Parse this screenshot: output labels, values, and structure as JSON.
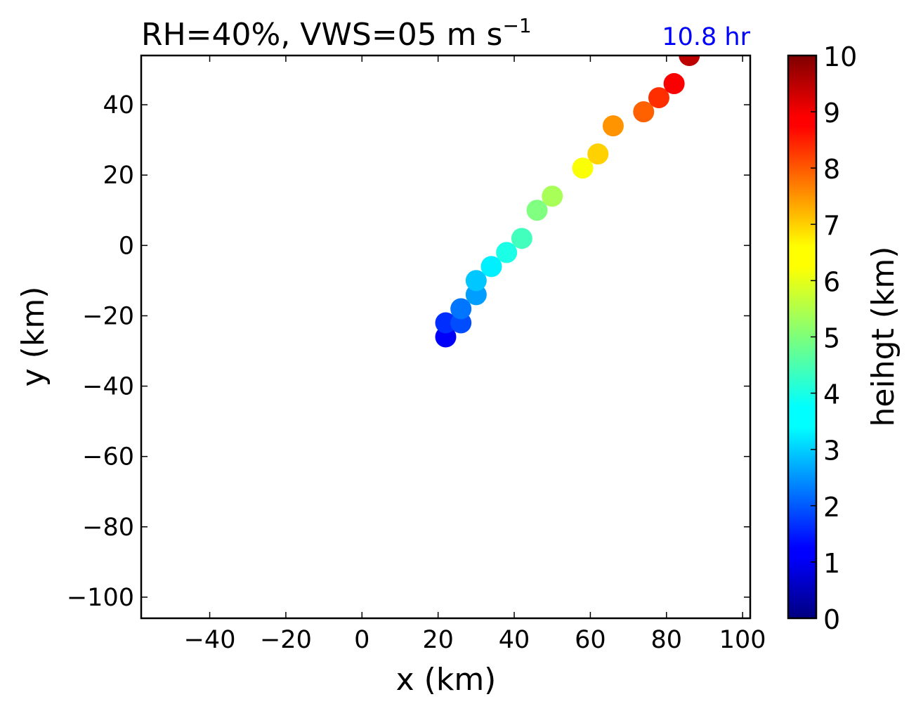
{
  "chart_data": {
    "type": "scatter",
    "title": "RH=40%, VWS=05 m s",
    "title_superscript": "−1",
    "time_label": "10.8 hr",
    "time_label_color": "#0000ff",
    "xlabel": "x (km)",
    "ylabel": "y (km)",
    "xlim": [
      -58,
      102
    ],
    "ylim": [
      -106,
      54
    ],
    "xticks": [
      -40,
      -20,
      0,
      20,
      40,
      60,
      80,
      100
    ],
    "yticks": [
      -100,
      -80,
      -60,
      -40,
      -20,
      0,
      20,
      40
    ],
    "colorbar": {
      "label": "heihgt (km)",
      "range": [
        0,
        10
      ],
      "ticks": [
        0,
        1,
        2,
        3,
        4,
        5,
        6,
        7,
        8,
        9,
        10
      ],
      "colormap": "jet"
    },
    "points": [
      {
        "x": 22,
        "y": -26,
        "height": 1.2
      },
      {
        "x": 22,
        "y": -22,
        "height": 1.7
      },
      {
        "x": 26,
        "y": -22,
        "height": 2.0
      },
      {
        "x": 26,
        "y": -18,
        "height": 2.4
      },
      {
        "x": 30,
        "y": -14,
        "height": 2.8
      },
      {
        "x": 30,
        "y": -10,
        "height": 3.2
      },
      {
        "x": 34,
        "y": -6,
        "height": 3.6
      },
      {
        "x": 38,
        "y": -2,
        "height": 4.0
      },
      {
        "x": 42,
        "y": 2,
        "height": 4.4
      },
      {
        "x": 46,
        "y": 10,
        "height": 5.0
      },
      {
        "x": 50,
        "y": 14,
        "height": 5.4
      },
      {
        "x": 58,
        "y": 22,
        "height": 6.2
      },
      {
        "x": 62,
        "y": 26,
        "height": 6.7
      },
      {
        "x": 66,
        "y": 34,
        "height": 7.3
      },
      {
        "x": 74,
        "y": 38,
        "height": 7.8
      },
      {
        "x": 78,
        "y": 42,
        "height": 8.3
      },
      {
        "x": 82,
        "y": 46,
        "height": 8.8
      },
      {
        "x": 86,
        "y": 54,
        "height": 9.4
      }
    ]
  }
}
